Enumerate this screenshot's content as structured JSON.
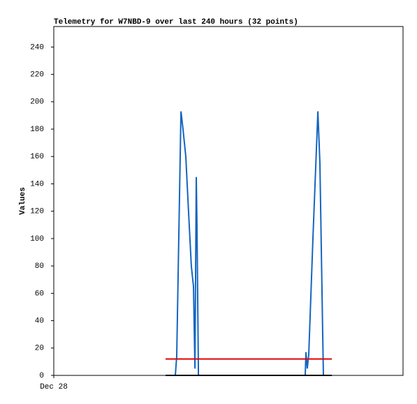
{
  "chart_data": {
    "type": "line",
    "title": "Telemetry for W7NBD-9 over last 240 hours (32 points)",
    "y_label": "Values",
    "xlim": [
      0,
      240
    ],
    "xticks": [
      {
        "value": 0,
        "label": "Dec 28"
      }
    ],
    "ylim": [
      0,
      255
    ],
    "yticks": [
      0,
      20,
      40,
      60,
      80,
      100,
      120,
      140,
      160,
      180,
      200,
      220,
      240
    ],
    "grid": false,
    "series": [
      {
        "color": "#1565c0",
        "x": [
          83.5,
          84.5,
          87.4,
          88.8,
          90.7,
          92.6,
          94.5,
          96.0,
          97.0,
          97.9,
          98.4,
          99.4,
          172.8,
          173.3,
          174.2,
          175.2,
          178.1,
          181.5,
          182.9,
          184.8,
          185.3
        ],
        "values": [
          0,
          14,
          193,
          180,
          160,
          120,
          80,
          65,
          5,
          145,
          110,
          0,
          0,
          17,
          5,
          15,
          100,
          193,
          155,
          30,
          0
        ]
      },
      {
        "color": "#e00000",
        "x": [
          76.8,
          191.1
        ],
        "values": [
          12,
          12
        ]
      },
      {
        "color": "#000000",
        "x": [
          76.8,
          191.1
        ],
        "values": [
          0,
          0
        ]
      }
    ]
  }
}
